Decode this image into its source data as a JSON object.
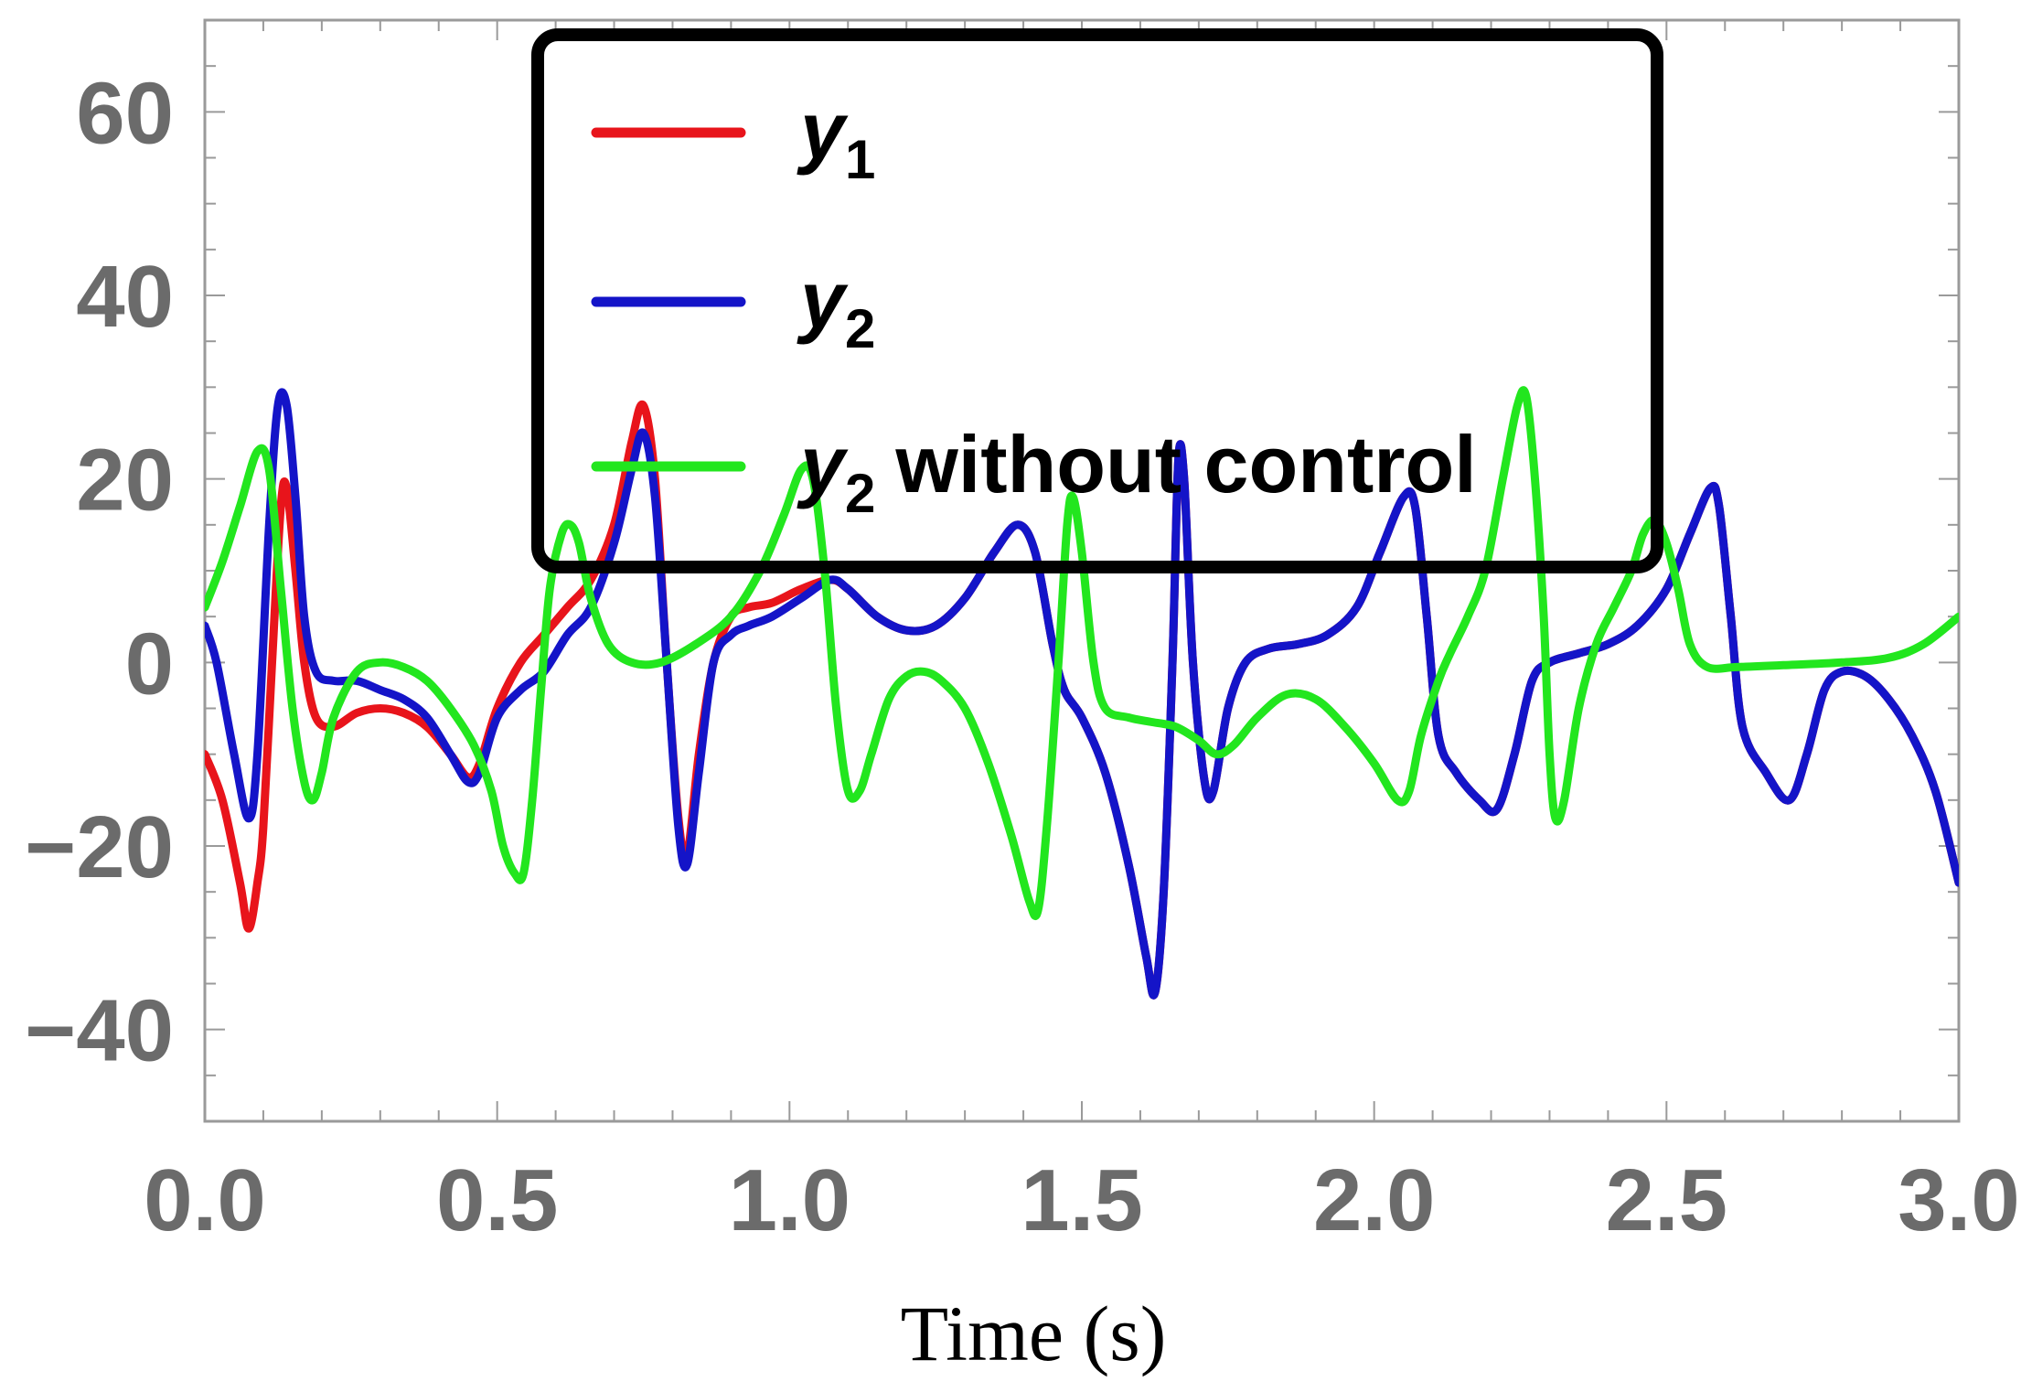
{
  "chart_data": {
    "type": "line",
    "title": "",
    "xlabel": "Time (s)",
    "ylabel": "",
    "xlim": [
      0,
      3
    ],
    "ylim": [
      -50,
      70
    ],
    "xticks": [
      0,
      0.5,
      1,
      1.5,
      2,
      2.5,
      3
    ],
    "xtick_labels": [
      "0.0",
      "0.5",
      "1.0",
      "1.5",
      "2.0",
      "2.5",
      "3.0"
    ],
    "yticks": [
      -40,
      -20,
      0,
      20,
      40,
      60
    ],
    "ytick_labels": [
      "−40",
      "−20",
      "0",
      "20",
      "40",
      "60"
    ],
    "grid": false,
    "legend_position": "top-center",
    "series": [
      {
        "name": "y",
        "subscript": "1",
        "suffix": "",
        "color": "#e8141b",
        "points": [
          [
            0,
            -10
          ],
          [
            0.03,
            -15
          ],
          [
            0.06,
            -24
          ],
          [
            0.075,
            -29
          ],
          [
            0.09,
            -24
          ],
          [
            0.1,
            -18
          ],
          [
            0.115,
            0
          ],
          [
            0.13,
            17
          ],
          [
            0.14,
            19
          ],
          [
            0.155,
            10
          ],
          [
            0.17,
            0
          ],
          [
            0.19,
            -6
          ],
          [
            0.22,
            -7
          ],
          [
            0.26,
            -5.5
          ],
          [
            0.3,
            -5
          ],
          [
            0.34,
            -5.5
          ],
          [
            0.38,
            -7
          ],
          [
            0.42,
            -10
          ],
          [
            0.45,
            -12.5
          ],
          [
            0.47,
            -11
          ],
          [
            0.5,
            -5
          ],
          [
            0.54,
            0
          ],
          [
            0.58,
            3
          ],
          [
            0.62,
            6
          ],
          [
            0.66,
            9
          ],
          [
            0.7,
            15
          ],
          [
            0.73,
            24
          ],
          [
            0.75,
            28
          ],
          [
            0.77,
            20
          ],
          [
            0.79,
            0
          ],
          [
            0.81,
            -17
          ],
          [
            0.825,
            -21
          ],
          [
            0.845,
            -10
          ],
          [
            0.87,
            0
          ],
          [
            0.9,
            5
          ],
          [
            0.93,
            6
          ],
          [
            0.97,
            6.5
          ],
          [
            1.02,
            8
          ],
          [
            1.07,
            9
          ],
          [
            1.1,
            8
          ],
          [
            1.15,
            5
          ],
          [
            1.2,
            3.5
          ],
          [
            1.25,
            4
          ],
          [
            1.3,
            7
          ],
          [
            1.35,
            12
          ],
          [
            1.39,
            15
          ],
          [
            1.42,
            12
          ],
          [
            1.45,
            2
          ],
          [
            1.47,
            -3
          ],
          [
            1.5,
            -6
          ],
          [
            1.54,
            -12
          ],
          [
            1.58,
            -22
          ],
          [
            1.61,
            -32
          ],
          [
            1.625,
            -36
          ],
          [
            1.64,
            -25
          ],
          [
            1.655,
            0
          ],
          [
            1.665,
            22
          ],
          [
            1.675,
            20
          ],
          [
            1.69,
            0
          ],
          [
            1.71,
            -13
          ],
          [
            1.725,
            -14
          ],
          [
            1.75,
            -5
          ],
          [
            1.78,
            0
          ],
          [
            1.82,
            1.5
          ],
          [
            1.87,
            2
          ],
          [
            1.92,
            3
          ],
          [
            1.97,
            6
          ],
          [
            2.01,
            12
          ],
          [
            2.05,
            18
          ],
          [
            2.07,
            17
          ],
          [
            2.09,
            5
          ],
          [
            2.11,
            -8
          ],
          [
            2.14,
            -12
          ],
          [
            2.18,
            -15
          ],
          [
            2.21,
            -16
          ],
          [
            2.24,
            -10
          ],
          [
            2.27,
            -2
          ],
          [
            2.3,
            0
          ],
          [
            2.35,
            1
          ],
          [
            2.4,
            2
          ],
          [
            2.45,
            4
          ],
          [
            2.5,
            8
          ],
          [
            2.54,
            14
          ],
          [
            2.575,
            19
          ],
          [
            2.59,
            17
          ],
          [
            2.61,
            5
          ],
          [
            2.63,
            -7
          ],
          [
            2.67,
            -12
          ],
          [
            2.71,
            -15
          ],
          [
            2.74,
            -10
          ],
          [
            2.77,
            -3
          ],
          [
            2.8,
            -1
          ],
          [
            2.84,
            -1.5
          ],
          [
            2.88,
            -4
          ],
          [
            2.92,
            -8
          ],
          [
            2.96,
            -14
          ],
          [
            3.0,
            -24
          ]
        ]
      },
      {
        "name": "y",
        "subscript": "2",
        "suffix": "",
        "color": "#1414c8",
        "points": [
          [
            0,
            4
          ],
          [
            0.02,
            0
          ],
          [
            0.05,
            -10
          ],
          [
            0.075,
            -17
          ],
          [
            0.09,
            -10
          ],
          [
            0.11,
            15
          ],
          [
            0.125,
            28
          ],
          [
            0.14,
            28
          ],
          [
            0.155,
            18
          ],
          [
            0.17,
            5
          ],
          [
            0.19,
            -1
          ],
          [
            0.22,
            -2
          ],
          [
            0.26,
            -2
          ],
          [
            0.3,
            -3
          ],
          [
            0.34,
            -4
          ],
          [
            0.38,
            -6
          ],
          [
            0.42,
            -10
          ],
          [
            0.45,
            -13
          ],
          [
            0.47,
            -12
          ],
          [
            0.5,
            -6
          ],
          [
            0.54,
            -3
          ],
          [
            0.58,
            -1
          ],
          [
            0.62,
            3
          ],
          [
            0.66,
            6
          ],
          [
            0.7,
            13
          ],
          [
            0.73,
            21
          ],
          [
            0.75,
            25
          ],
          [
            0.77,
            18
          ],
          [
            0.79,
            0
          ],
          [
            0.81,
            -18
          ],
          [
            0.825,
            -22
          ],
          [
            0.845,
            -12
          ],
          [
            0.87,
            0
          ],
          [
            0.9,
            3
          ],
          [
            0.93,
            4
          ],
          [
            0.97,
            5
          ],
          [
            1.02,
            7
          ],
          [
            1.07,
            9
          ],
          [
            1.1,
            8
          ],
          [
            1.15,
            5
          ],
          [
            1.2,
            3.5
          ],
          [
            1.25,
            4
          ],
          [
            1.3,
            7
          ],
          [
            1.35,
            12
          ],
          [
            1.39,
            15
          ],
          [
            1.42,
            12
          ],
          [
            1.45,
            2
          ],
          [
            1.47,
            -3
          ],
          [
            1.5,
            -6
          ],
          [
            1.54,
            -12
          ],
          [
            1.58,
            -22
          ],
          [
            1.61,
            -32
          ],
          [
            1.625,
            -36
          ],
          [
            1.64,
            -25
          ],
          [
            1.655,
            0
          ],
          [
            1.665,
            22
          ],
          [
            1.675,
            20
          ],
          [
            1.69,
            0
          ],
          [
            1.71,
            -13
          ],
          [
            1.725,
            -14
          ],
          [
            1.75,
            -5
          ],
          [
            1.78,
            0
          ],
          [
            1.82,
            1.5
          ],
          [
            1.87,
            2
          ],
          [
            1.92,
            3
          ],
          [
            1.97,
            6
          ],
          [
            2.01,
            12
          ],
          [
            2.05,
            18
          ],
          [
            2.07,
            17
          ],
          [
            2.09,
            5
          ],
          [
            2.11,
            -8
          ],
          [
            2.14,
            -12
          ],
          [
            2.18,
            -15
          ],
          [
            2.21,
            -16
          ],
          [
            2.24,
            -10
          ],
          [
            2.27,
            -2
          ],
          [
            2.3,
            0
          ],
          [
            2.35,
            1
          ],
          [
            2.4,
            2
          ],
          [
            2.45,
            4
          ],
          [
            2.5,
            8
          ],
          [
            2.54,
            14
          ],
          [
            2.575,
            19
          ],
          [
            2.59,
            17
          ],
          [
            2.61,
            5
          ],
          [
            2.63,
            -7
          ],
          [
            2.67,
            -12
          ],
          [
            2.71,
            -15
          ],
          [
            2.74,
            -10
          ],
          [
            2.77,
            -3
          ],
          [
            2.8,
            -1
          ],
          [
            2.84,
            -1.5
          ],
          [
            2.88,
            -4
          ],
          [
            2.92,
            -8
          ],
          [
            2.96,
            -14
          ],
          [
            3.0,
            -24
          ]
        ]
      },
      {
        "name": "y",
        "subscript": "2",
        "suffix": "without control",
        "color": "#22e61e",
        "points": [
          [
            0,
            6
          ],
          [
            0.03,
            11
          ],
          [
            0.06,
            17
          ],
          [
            0.09,
            23
          ],
          [
            0.11,
            21
          ],
          [
            0.13,
            8
          ],
          [
            0.15,
            -5
          ],
          [
            0.17,
            -13
          ],
          [
            0.185,
            -15
          ],
          [
            0.2,
            -12
          ],
          [
            0.22,
            -6
          ],
          [
            0.26,
            -1
          ],
          [
            0.3,
            0
          ],
          [
            0.34,
            -0.5
          ],
          [
            0.38,
            -2
          ],
          [
            0.42,
            -5
          ],
          [
            0.46,
            -9
          ],
          [
            0.49,
            -14
          ],
          [
            0.51,
            -20
          ],
          [
            0.53,
            -23
          ],
          [
            0.545,
            -23
          ],
          [
            0.56,
            -15
          ],
          [
            0.575,
            -3
          ],
          [
            0.59,
            8
          ],
          [
            0.61,
            14
          ],
          [
            0.625,
            15
          ],
          [
            0.64,
            13
          ],
          [
            0.66,
            7
          ],
          [
            0.69,
            2
          ],
          [
            0.73,
            0
          ],
          [
            0.78,
            0
          ],
          [
            0.84,
            2
          ],
          [
            0.9,
            5
          ],
          [
            0.95,
            10
          ],
          [
            0.99,
            16
          ],
          [
            1.02,
            21
          ],
          [
            1.04,
            20
          ],
          [
            1.06,
            10
          ],
          [
            1.08,
            -5
          ],
          [
            1.1,
            -14
          ],
          [
            1.12,
            -14
          ],
          [
            1.14,
            -10
          ],
          [
            1.17,
            -4
          ],
          [
            1.2,
            -1.5
          ],
          [
            1.23,
            -1
          ],
          [
            1.26,
            -2
          ],
          [
            1.3,
            -5
          ],
          [
            1.34,
            -11
          ],
          [
            1.38,
            -19
          ],
          [
            1.41,
            -26
          ],
          [
            1.425,
            -27
          ],
          [
            1.44,
            -18
          ],
          [
            1.46,
            0
          ],
          [
            1.475,
            15
          ],
          [
            1.485,
            18
          ],
          [
            1.5,
            12
          ],
          [
            1.52,
            0
          ],
          [
            1.54,
            -5
          ],
          [
            1.58,
            -6
          ],
          [
            1.62,
            -6.5
          ],
          [
            1.66,
            -7
          ],
          [
            1.7,
            -8.5
          ],
          [
            1.73,
            -10
          ],
          [
            1.76,
            -9
          ],
          [
            1.8,
            -6
          ],
          [
            1.85,
            -3.5
          ],
          [
            1.9,
            -4
          ],
          [
            1.95,
            -7
          ],
          [
            2.0,
            -11
          ],
          [
            2.04,
            -15
          ],
          [
            2.06,
            -14
          ],
          [
            2.08,
            -8
          ],
          [
            2.11,
            -2
          ],
          [
            2.13,
            1
          ],
          [
            2.16,
            5
          ],
          [
            2.19,
            10
          ],
          [
            2.22,
            20
          ],
          [
            2.245,
            28
          ],
          [
            2.26,
            29
          ],
          [
            2.275,
            20
          ],
          [
            2.29,
            5
          ],
          [
            2.3,
            -10
          ],
          [
            2.31,
            -17
          ],
          [
            2.325,
            -15
          ],
          [
            2.35,
            -5
          ],
          [
            2.38,
            2
          ],
          [
            2.41,
            6
          ],
          [
            2.44,
            10
          ],
          [
            2.46,
            14
          ],
          [
            2.48,
            15.5
          ],
          [
            2.5,
            13
          ],
          [
            2.52,
            8
          ],
          [
            2.54,
            2
          ],
          [
            2.57,
            -0.5
          ],
          [
            2.62,
            -0.5
          ],
          [
            2.7,
            -0.3
          ],
          [
            2.8,
            0
          ],
          [
            2.88,
            0.5
          ],
          [
            2.94,
            2
          ],
          [
            3.0,
            5
          ]
        ]
      }
    ]
  }
}
